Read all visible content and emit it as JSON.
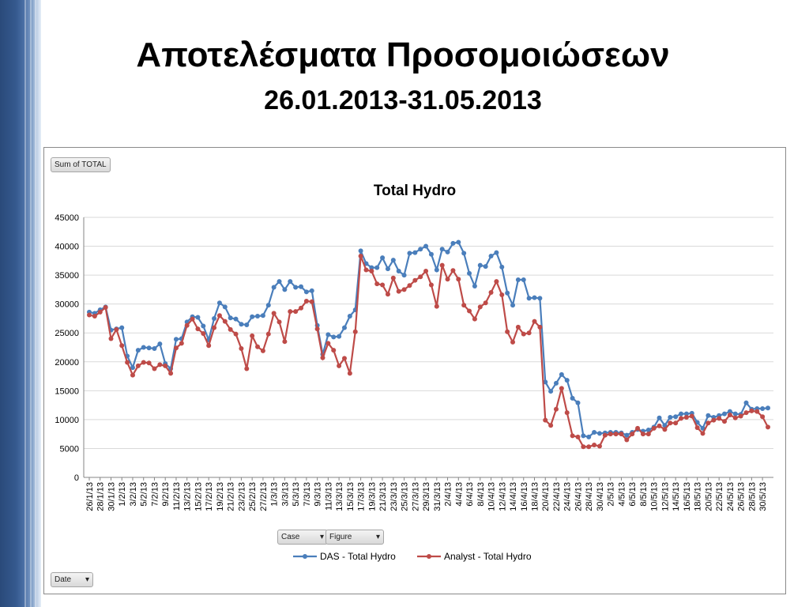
{
  "slide": {
    "title": "Αποτελέσματα Προσομοιώσεων",
    "subtitle": "26.01.2013-31.05.2013"
  },
  "pivot": {
    "value_button": "Sum of TOTAL",
    "legend_buttons": [
      "Case",
      "Figure"
    ],
    "axis_button": "Date"
  },
  "colors": {
    "das": "#4a7ebb",
    "analyst": "#be4b48",
    "sidebar": "#35598e"
  },
  "chart_data": {
    "type": "line",
    "title": "Total Hydro",
    "xlabel": "",
    "ylabel": "",
    "ylim": [
      0,
      45000
    ],
    "yticks": [
      0,
      5000,
      10000,
      15000,
      20000,
      25000,
      30000,
      35000,
      40000,
      45000
    ],
    "grid": true,
    "legend_position": "bottom",
    "x_start": "2013-01-26",
    "x_end": "2013-05-31",
    "x_tick_labels": [
      "26/1/13",
      "28/1/13",
      "30/1/13",
      "1/2/13",
      "3/2/13",
      "5/2/13",
      "7/2/13",
      "9/2/13",
      "11/2/13",
      "13/2/13",
      "15/2/13",
      "17/2/13",
      "19/2/13",
      "21/2/13",
      "23/2/13",
      "25/2/13",
      "27/2/13",
      "1/3/13",
      "3/3/13",
      "5/3/13",
      "7/3/13",
      "9/3/13",
      "11/3/13",
      "13/3/13",
      "15/3/13",
      "17/3/13",
      "19/3/13",
      "21/3/13",
      "23/3/13",
      "25/3/13",
      "27/3/13",
      "29/3/13",
      "31/3/13",
      "2/4/13",
      "4/4/13",
      "6/4/13",
      "8/4/13",
      "10/4/13",
      "12/4/13",
      "14/4/13",
      "16/4/13",
      "18/4/13",
      "20/4/13",
      "22/4/13",
      "24/4/13",
      "26/4/13",
      "28/4/13",
      "30/4/13",
      "2/5/13",
      "4/5/13",
      "6/5/13",
      "8/5/13",
      "10/5/13",
      "12/5/13",
      "14/5/13",
      "16/5/13",
      "18/5/13",
      "20/5/13",
      "22/5/13",
      "24/5/13",
      "26/5/13",
      "28/5/13",
      "30/5/13"
    ],
    "series": [
      {
        "name": "DAS - Total Hydro",
        "values": [
          28600,
          28400,
          29000,
          29500,
          25500,
          25700,
          25900,
          21000,
          19000,
          22000,
          22500,
          22400,
          22300,
          23100,
          19700,
          18800,
          23900,
          24000,
          26900,
          27800,
          27700,
          26200,
          23800,
          27500,
          30200,
          29500,
          27600,
          27400,
          26500,
          26400,
          27800,
          27900,
          28000,
          29800,
          32900,
          33900,
          32500,
          33900,
          32900,
          33000,
          32100,
          32300,
          26300,
          21300,
          24700,
          24300,
          24400,
          25900,
          27900,
          29000,
          39200,
          37000,
          36300,
          36300,
          38000,
          36100,
          37600,
          35700,
          35000,
          38800,
          38900,
          39500,
          40000,
          38600,
          35900,
          39500,
          39000,
          40500,
          40700,
          38800,
          35300,
          33100,
          36700,
          36500,
          38300,
          38900,
          36400,
          31900,
          29800,
          34200,
          34200,
          31000,
          31100,
          31000,
          16500,
          14900,
          16300,
          17800,
          16800,
          13700,
          12900,
          7200,
          7000,
          7800,
          7600,
          7700,
          7800,
          7800,
          7700,
          7300,
          7800,
          8300,
          8000,
          8200,
          8700,
          10300,
          9000,
          10400,
          10500,
          11000,
          11000,
          11100,
          9500,
          8500,
          10700,
          10400,
          10700,
          11000,
          11400,
          11000,
          10900,
          12900,
          11800,
          11900,
          11900,
          12000
        ]
      },
      {
        "name": "Analyst - Total Hydro",
        "values": [
          28100,
          27900,
          28600,
          29400,
          24000,
          25600,
          22800,
          19900,
          17700,
          19300,
          19900,
          19800,
          18800,
          19500,
          19300,
          18000,
          22400,
          23200,
          26300,
          27400,
          25700,
          24900,
          22800,
          25900,
          28000,
          27000,
          25600,
          24800,
          22300,
          18800,
          24500,
          22600,
          21900,
          24800,
          28400,
          26900,
          23500,
          28700,
          28700,
          29300,
          30500,
          30400,
          25700,
          20700,
          23200,
          22000,
          19300,
          20600,
          18000,
          25200,
          38300,
          35900,
          35700,
          33500,
          33300,
          31700,
          34500,
          32200,
          32500,
          33200,
          34100,
          34700,
          35700,
          33300,
          29600,
          36700,
          34300,
          35800,
          34300,
          29800,
          28800,
          27400,
          29500,
          30200,
          32000,
          33900,
          31600,
          25200,
          23400,
          26000,
          24800,
          25000,
          27000,
          26000,
          9900,
          9000,
          11800,
          15400,
          11200,
          7200,
          7000,
          5300,
          5300,
          5600,
          5400,
          7300,
          7500,
          7500,
          7500,
          6500,
          7500,
          8500,
          7500,
          7500,
          8500,
          8900,
          8300,
          9400,
          9400,
          10200,
          10400,
          10600,
          8600,
          7600,
          9400,
          9900,
          10200,
          9700,
          10800,
          10300,
          10600,
          11200,
          11500,
          11400,
          10500,
          8700
        ]
      }
    ]
  }
}
